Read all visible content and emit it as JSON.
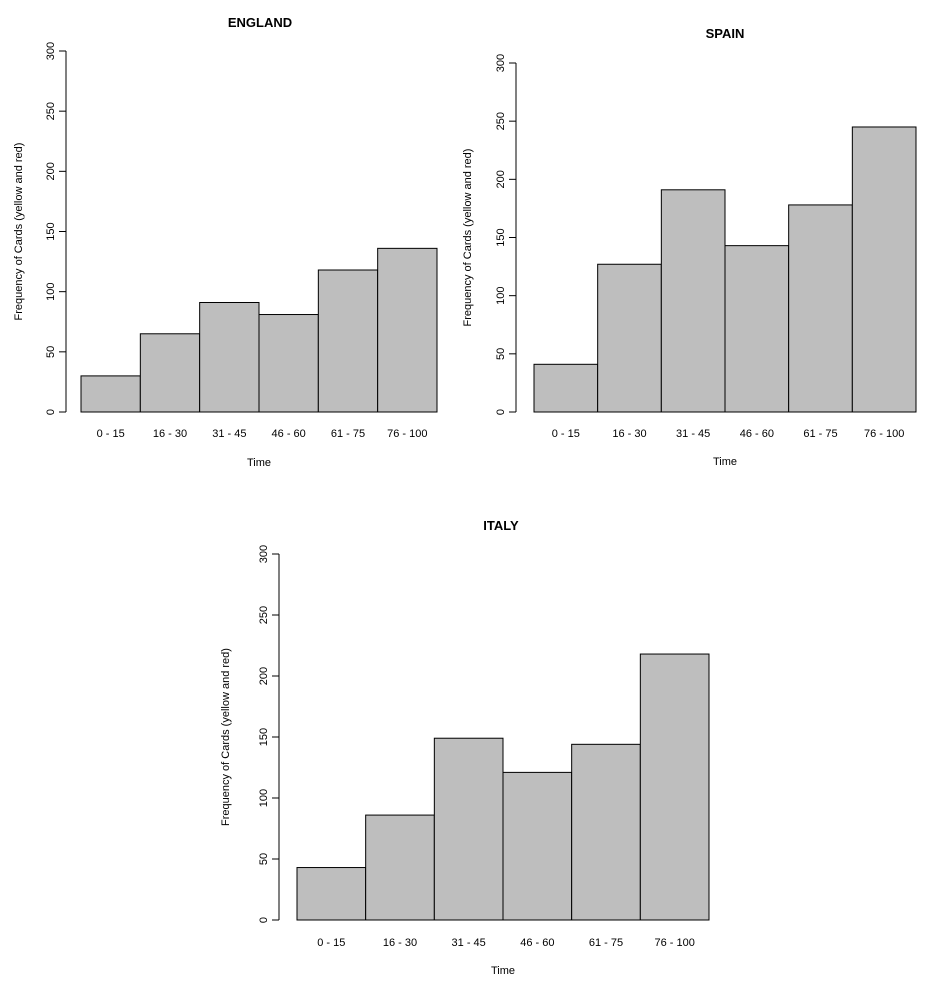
{
  "chart_data": [
    {
      "type": "bar",
      "title": "ENGLAND",
      "xlabel": "Time",
      "ylabel": "Frequency of Cards (yellow and red)",
      "categories": [
        "0 - 15",
        "16 - 30",
        "31 - 45",
        "46 - 60",
        "61 - 75",
        "76 - 100"
      ],
      "values": [
        30,
        65,
        91,
        81,
        118,
        136
      ],
      "ylim": [
        0,
        300
      ],
      "yticks": [
        0,
        50,
        100,
        150,
        200,
        250,
        300
      ],
      "bar_color": "#bebebe",
      "grid": false
    },
    {
      "type": "bar",
      "title": "SPAIN",
      "xlabel": "Time",
      "ylabel": "Frequency of Cards (yellow and red)",
      "categories": [
        "0 - 15",
        "16 - 30",
        "31 - 45",
        "46 - 60",
        "61 - 75",
        "76 - 100"
      ],
      "values": [
        41,
        127,
        191,
        143,
        178,
        245
      ],
      "ylim": [
        0,
        300
      ],
      "yticks": [
        0,
        50,
        100,
        150,
        200,
        250,
        300
      ],
      "bar_color": "#bebebe",
      "grid": false
    },
    {
      "type": "bar",
      "title": "ITALY",
      "xlabel": "Time",
      "ylabel": "Frequency of Cards (yellow and red)",
      "categories": [
        "0 - 15",
        "16 - 30",
        "31 - 45",
        "46 - 60",
        "61 - 75",
        "76 - 100"
      ],
      "values": [
        43,
        86,
        149,
        121,
        144,
        218
      ],
      "ylim": [
        0,
        300
      ],
      "yticks": [
        0,
        50,
        100,
        150,
        200,
        250,
        300
      ],
      "bar_color": "#bebebe",
      "grid": false
    }
  ]
}
